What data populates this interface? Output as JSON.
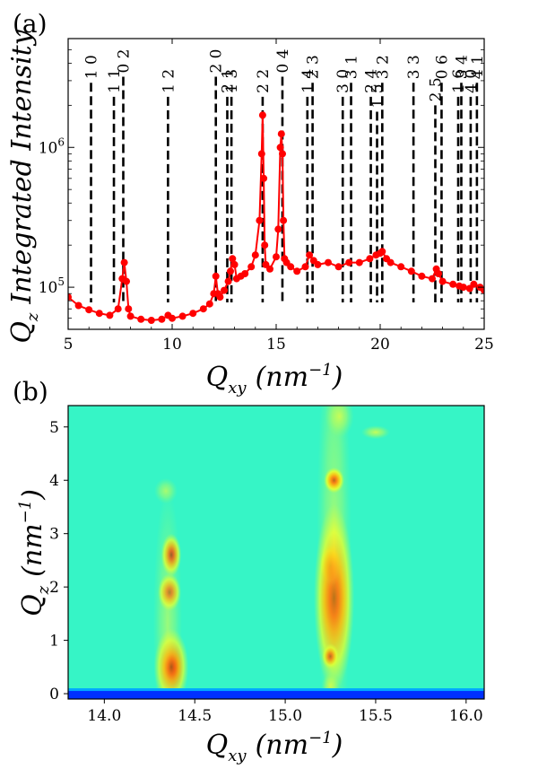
{
  "chart_data": [
    {
      "panel": "(a)",
      "type": "line",
      "ylabel": "Q_z Integrated Intensity",
      "ylabel_main": "Q",
      "ylabel_sub": "z",
      "ylabel_rest": "Integrated Intensity",
      "xlabel_main": "Q",
      "xlabel_sub": "xy",
      "xlabel_unit": "(nm",
      "xlabel_exp": "−1",
      "xlabel_close": ")",
      "xlim": [
        5,
        25
      ],
      "ylim": [
        50000,
        6000000
      ],
      "yscale": "log",
      "xticks": [
        5,
        10,
        15,
        20,
        25
      ],
      "xtick_labels": [
        "5",
        "10",
        "15",
        "20",
        "25"
      ],
      "yticks": [
        100000,
        1000000
      ],
      "ytick_base": "10",
      "ytick_exps": [
        "5",
        "6"
      ],
      "series": [
        {
          "color": "#ff0000",
          "x": [
            5.0,
            5.5,
            6.0,
            6.5,
            7.0,
            7.4,
            7.6,
            7.7,
            7.8,
            7.9,
            8.0,
            8.5,
            9.0,
            9.5,
            9.8,
            10.0,
            10.5,
            11.0,
            11.5,
            11.8,
            12.0,
            12.1,
            12.2,
            12.3,
            12.5,
            12.7,
            12.8,
            12.9,
            13.0,
            13.1,
            13.3,
            13.5,
            13.8,
            14.0,
            14.2,
            14.3,
            14.35,
            14.4,
            14.45,
            14.5,
            14.7,
            15.0,
            15.1,
            15.2,
            15.25,
            15.3,
            15.35,
            15.4,
            15.5,
            15.7,
            16.0,
            16.4,
            16.6,
            16.8,
            17.0,
            17.5,
            18.0,
            18.5,
            19.0,
            19.5,
            19.8,
            20.0,
            20.1,
            20.3,
            20.5,
            21.0,
            21.5,
            22.0,
            22.5,
            22.7,
            22.8,
            23.0,
            23.5,
            23.8,
            24.0,
            24.3,
            24.5,
            24.8,
            25.0
          ],
          "y": [
            85000,
            74000,
            69000,
            65000,
            63000,
            70000,
            115000,
            150000,
            110000,
            70000,
            62000,
            59000,
            58000,
            59000,
            63000,
            60000,
            62000,
            65000,
            70000,
            76000,
            90000,
            120000,
            90000,
            85000,
            95000,
            110000,
            130000,
            160000,
            145000,
            115000,
            120000,
            125000,
            140000,
            170000,
            300000,
            900000,
            1700000,
            600000,
            200000,
            145000,
            135000,
            165000,
            260000,
            1000000,
            1250000,
            900000,
            300000,
            160000,
            150000,
            140000,
            130000,
            140000,
            170000,
            155000,
            145000,
            150000,
            140000,
            150000,
            150000,
            160000,
            170000,
            175000,
            180000,
            160000,
            150000,
            140000,
            130000,
            120000,
            115000,
            135000,
            125000,
            110000,
            105000,
            102000,
            100000,
            98000,
            105000,
            100000,
            95000
          ]
        }
      ],
      "reflections": [
        {
          "x": 6.1,
          "label": "1 0",
          "top": 2900000
        },
        {
          "x": 7.2,
          "label": "1 1",
          "top": 2300000
        },
        {
          "x": 7.65,
          "label": "0 2",
          "top": 3200000
        },
        {
          "x": 9.8,
          "label": "1 2",
          "top": 2300000
        },
        {
          "x": 12.1,
          "label": "2 0",
          "top": 3200000
        },
        {
          "x": 12.65,
          "label": "2 1",
          "top": 2300000
        },
        {
          "x": 12.85,
          "label": "1 3",
          "top": 2300000
        },
        {
          "x": 14.35,
          "label": "2 2",
          "top": 2300000
        },
        {
          "x": 15.3,
          "label": "0 4",
          "top": 3200000
        },
        {
          "x": 16.5,
          "label": "1 4",
          "top": 2300000
        },
        {
          "x": 16.75,
          "label": "2 3",
          "top": 2900000
        },
        {
          "x": 18.2,
          "label": "3 0",
          "top": 2300000
        },
        {
          "x": 18.6,
          "label": "3 1",
          "top": 2900000
        },
        {
          "x": 19.55,
          "label": "2 4",
          "top": 2300000
        },
        {
          "x": 19.85,
          "label": "1 5",
          "top": 1800000
        },
        {
          "x": 20.1,
          "label": "3 2",
          "top": 2900000
        },
        {
          "x": 21.6,
          "label": "3 3",
          "top": 2900000
        },
        {
          "x": 22.65,
          "label": "2 5",
          "top": 2000000
        },
        {
          "x": 22.95,
          "label": "0 6",
          "top": 2900000
        },
        {
          "x": 23.75,
          "label": "1 6",
          "top": 2300000
        },
        {
          "x": 23.9,
          "label": "3 4",
          "top": 2900000
        },
        {
          "x": 24.35,
          "label": "4 0",
          "top": 2300000
        },
        {
          "x": 24.65,
          "label": "4 1",
          "top": 2900000
        }
      ]
    },
    {
      "panel": "(b)",
      "type": "heatmap",
      "xlabel_main": "Q",
      "xlabel_sub": "xy",
      "xlabel_unit": "(nm",
      "xlabel_exp": "−1",
      "xlabel_close": ")",
      "ylabel_main": "Q",
      "ylabel_sub": "z",
      "ylabel_unit": "(nm",
      "ylabel_exp": "−1",
      "ylabel_close": ")",
      "xlim": [
        13.8,
        16.1
      ],
      "ylim": [
        -0.1,
        5.4
      ],
      "xticks": [
        14.0,
        14.5,
        15.0,
        15.5,
        16.0
      ],
      "xtick_labels": [
        "14.0",
        "14.5",
        "15.0",
        "15.5",
        "16.0"
      ],
      "yticks": [
        0,
        1,
        2,
        3,
        4,
        5
      ],
      "ytick_labels": [
        "0",
        "1",
        "2",
        "3",
        "4",
        "5"
      ],
      "colormap": "jet",
      "background_color": "#36f5c6",
      "spots": [
        {
          "qxy": 14.37,
          "qz": 0.5,
          "sx": 0.035,
          "sz": 0.22,
          "level": 1.0
        },
        {
          "qxy": 14.37,
          "qz": 0.5,
          "sx": 0.06,
          "sz": 0.45,
          "level": 0.55
        },
        {
          "qxy": 14.36,
          "qz": 1.9,
          "sx": 0.04,
          "sz": 0.22,
          "level": 0.55
        },
        {
          "qxy": 14.37,
          "qz": 2.6,
          "sx": 0.035,
          "sz": 0.25,
          "level": 0.6
        },
        {
          "qxy": 14.35,
          "qz": 1.3,
          "sx": 0.05,
          "sz": 1.6,
          "level": 0.28
        },
        {
          "qxy": 14.34,
          "qz": 3.8,
          "sx": 0.04,
          "sz": 0.15,
          "level": 0.35
        },
        {
          "qxy": 15.27,
          "qz": 1.8,
          "sx": 0.05,
          "sz": 0.55,
          "level": 1.0
        },
        {
          "qxy": 15.25,
          "qz": 2.4,
          "sx": 0.035,
          "sz": 0.25,
          "level": 0.9
        },
        {
          "qxy": 15.27,
          "qz": 1.8,
          "sx": 0.07,
          "sz": 1.1,
          "level": 0.6
        },
        {
          "qxy": 15.27,
          "qz": 4.0,
          "sx": 0.035,
          "sz": 0.15,
          "level": 0.9
        },
        {
          "qxy": 15.25,
          "qz": 0.7,
          "sx": 0.03,
          "sz": 0.15,
          "level": 0.55
        },
        {
          "qxy": 15.25,
          "qz": 0.15,
          "sx": 0.03,
          "sz": 0.15,
          "level": 0.5
        },
        {
          "qxy": 15.27,
          "qz": 2.8,
          "sx": 0.06,
          "sz": 2.8,
          "level": 0.32
        },
        {
          "qxy": 15.3,
          "qz": 5.2,
          "sx": 0.05,
          "sz": 0.25,
          "level": 0.45
        },
        {
          "qxy": 15.5,
          "qz": 4.9,
          "sx": 0.05,
          "sz": 0.08,
          "level": 0.5
        }
      ],
      "baseline_qz": 0.0
    }
  ]
}
